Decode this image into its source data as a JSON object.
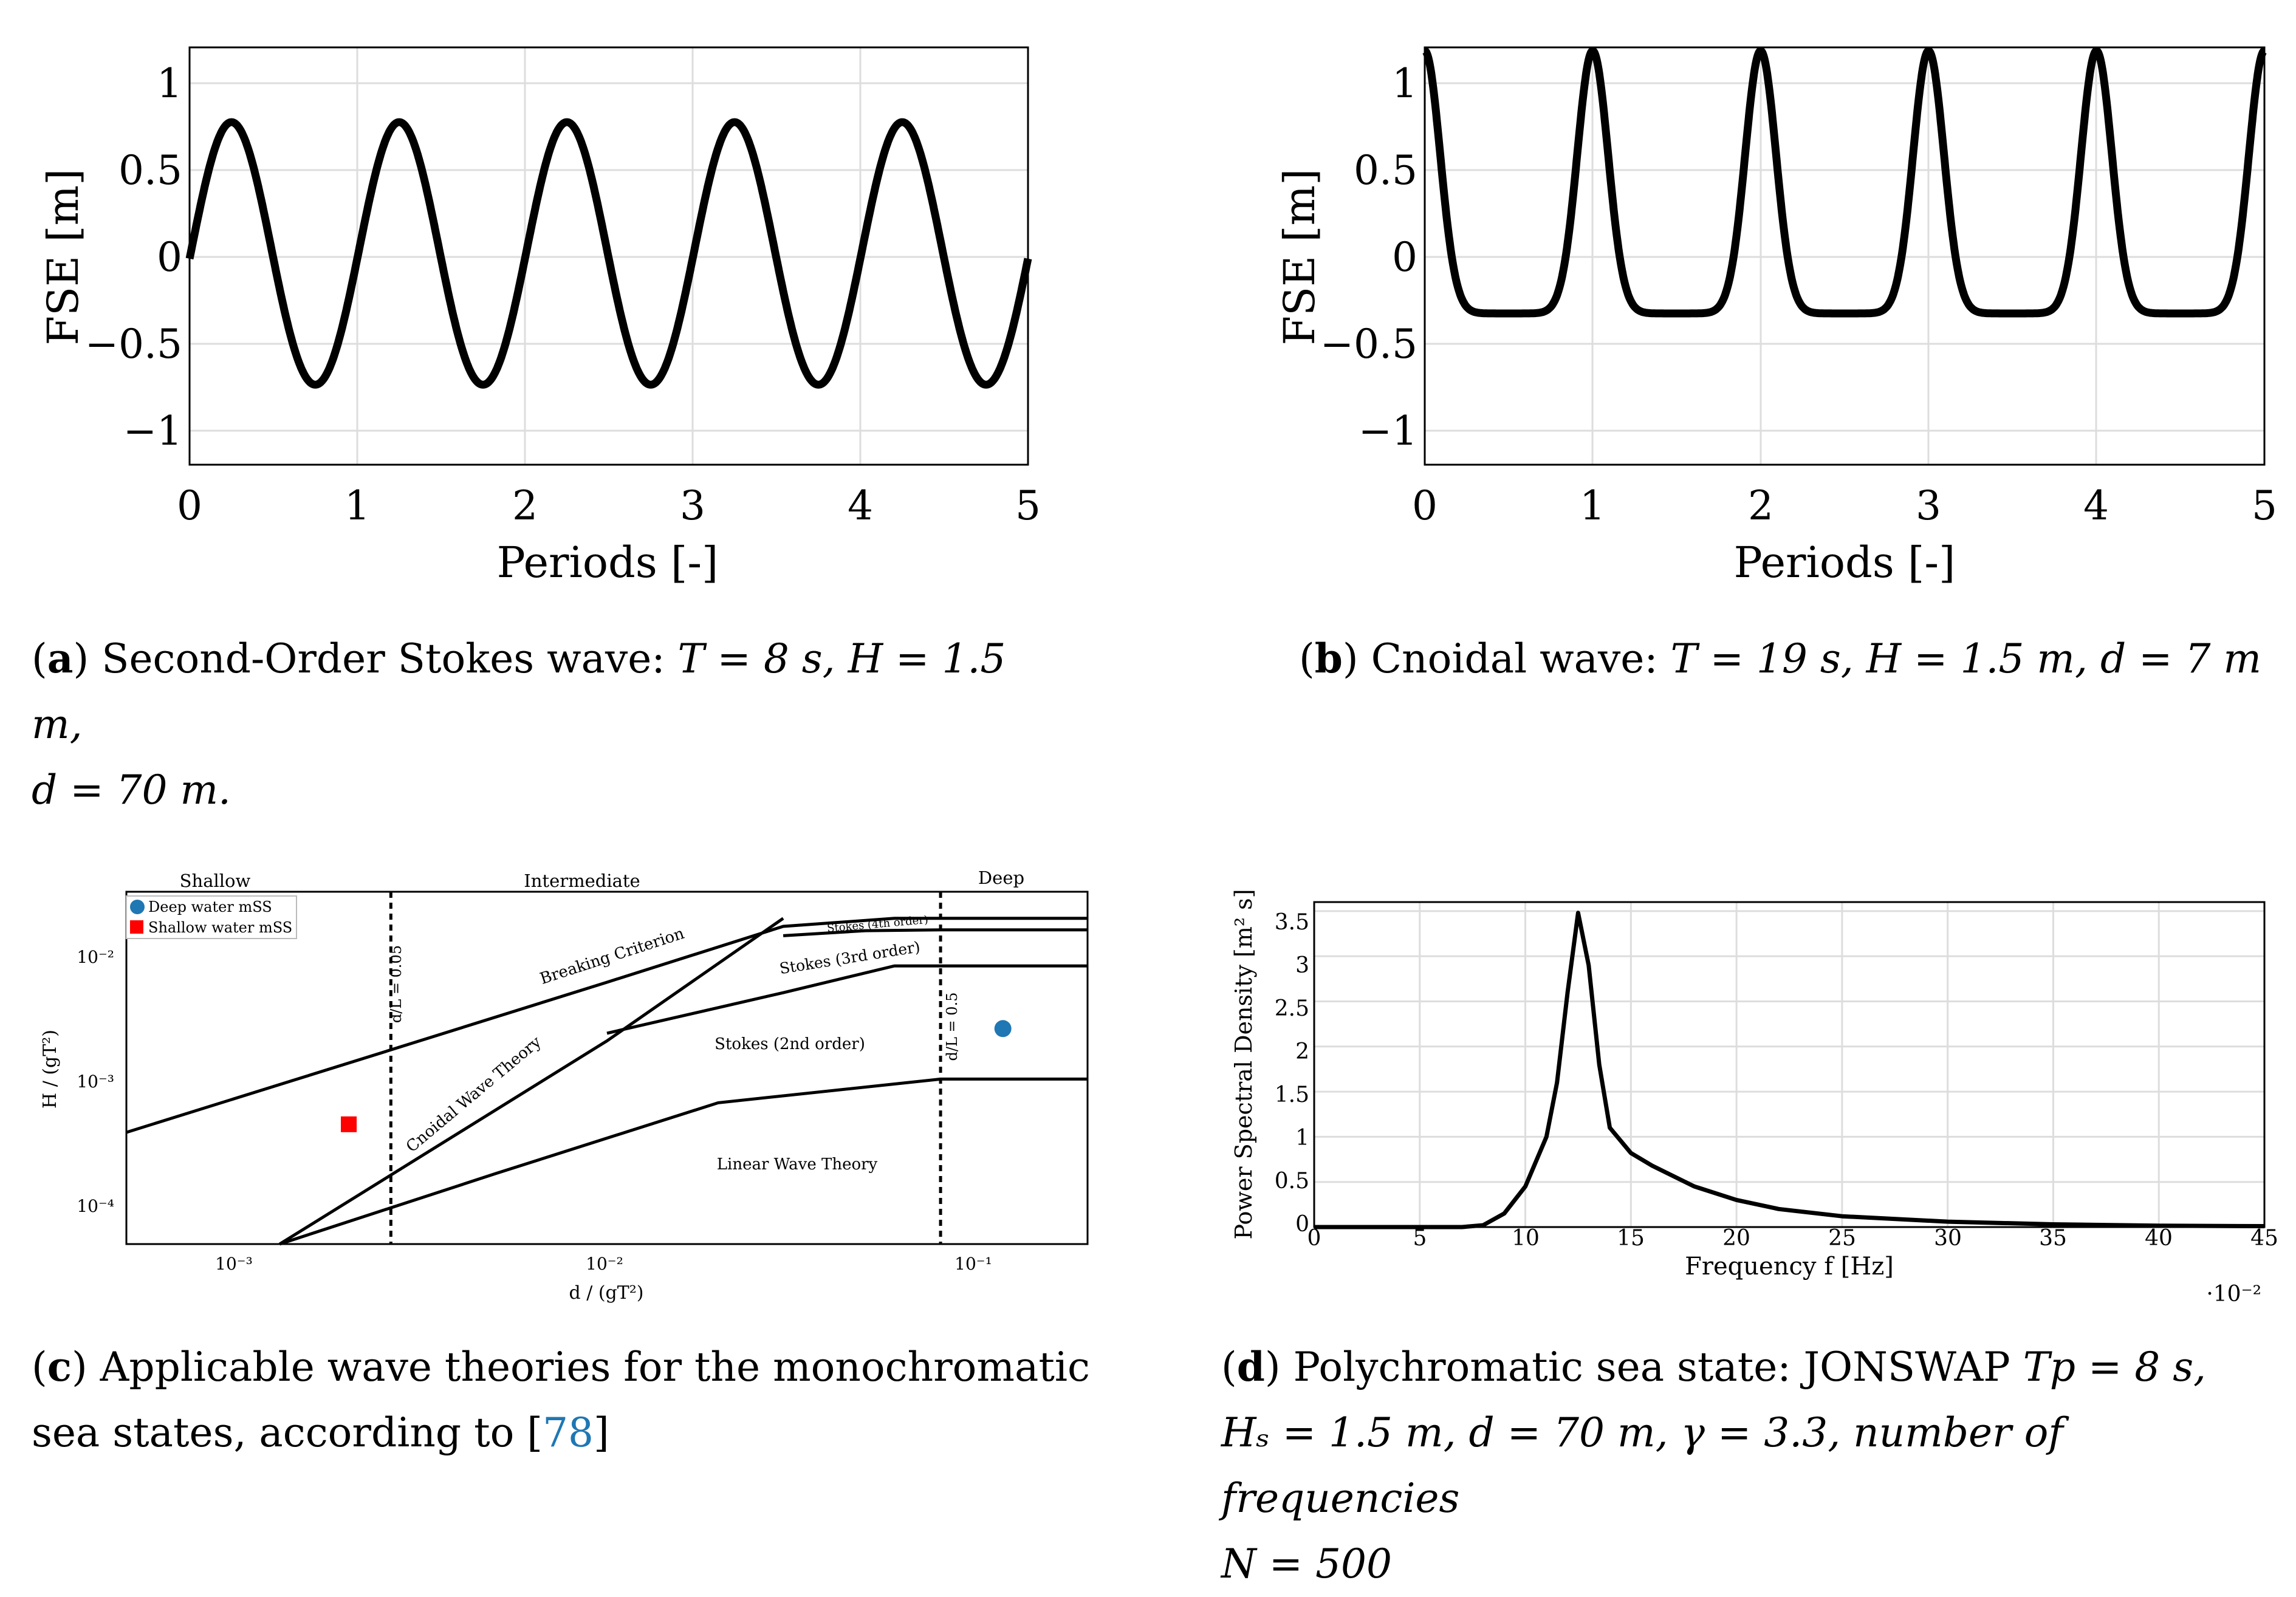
{
  "chart_data": [
    {
      "id": "a",
      "type": "line",
      "title": "",
      "xlabel": "Periods [-]",
      "ylabel": "FSE [m]",
      "xlim": [
        0,
        5
      ],
      "ylim": [
        -1.2,
        1.2
      ],
      "xticks": [
        "0",
        "1",
        "2",
        "3",
        "4",
        "5"
      ],
      "yticks": [
        "1",
        "0.5",
        "0",
        "−0.5",
        "−1"
      ],
      "series": [
        {
          "name": "Second-Order Stokes",
          "x_range": [
            0,
            5
          ],
          "description_values": {
            "crest": 0.77,
            "trough": -0.74
          }
        }
      ],
      "grid": true
    },
    {
      "id": "b",
      "type": "line",
      "title": "",
      "xlabel": "Periods [-]",
      "ylabel": "FSE [m]",
      "xlim": [
        0,
        5
      ],
      "ylim": [
        -1.2,
        1.2
      ],
      "xticks": [
        "0",
        "1",
        "2",
        "3",
        "4",
        "5"
      ],
      "yticks": [
        "1",
        "0.5",
        "0",
        "−0.5",
        "−1"
      ],
      "series": [
        {
          "name": "Cnoidal",
          "x_range": [
            0,
            5
          ],
          "description_values": {
            "crest": 1.18,
            "trough": -0.33
          }
        }
      ],
      "grid": true
    },
    {
      "id": "c",
      "type": "line",
      "title": "",
      "xlabel": "d / (gT²)",
      "ylabel": "H / (gT²)",
      "xscale": "log",
      "yscale": "log",
      "xlim": [
        0.0005,
        0.2
      ],
      "ylim": [
        5e-05,
        0.03
      ],
      "xticks": [
        "10⁻³",
        "10⁻²",
        "10⁻¹"
      ],
      "yticks": [
        "10⁻²",
        "10⁻³",
        "10⁻⁴"
      ],
      "regions": [
        "Shallow",
        "Intermediate",
        "Deep"
      ],
      "vlines": [
        {
          "x": 0.0026,
          "label": "d/L = 0.05"
        },
        {
          "x": 0.08,
          "label": "d/L = 0.5"
        }
      ],
      "curves": [
        {
          "name": "Breaking Criterion",
          "x": [
            0.0005,
            0.0026,
            0.01,
            0.03,
            0.06,
            0.2
          ],
          "y": [
            0.00038,
            0.0017,
            0.0058,
            0.016,
            0.0185,
            0.0185
          ]
        },
        {
          "name": "Stokes (4th order) boundary",
          "x": [
            0.03,
            0.05,
            0.08,
            0.2
          ],
          "y": [
            0.0135,
            0.0148,
            0.015,
            0.015
          ]
        },
        {
          "name": "Stokes (3rd order) boundary",
          "x": [
            0.01,
            0.03,
            0.06,
            0.2
          ],
          "y": [
            0.0023,
            0.0048,
            0.0078,
            0.0078
          ]
        },
        {
          "name": "Cnoidal Wave Theory boundary",
          "x": [
            0.0013,
            0.01,
            0.03
          ],
          "y": [
            5e-05,
            0.002,
            0.0185
          ]
        },
        {
          "name": "Linear Wave Theory boundary",
          "x": [
            0.0013,
            0.005,
            0.02,
            0.08,
            0.2
          ],
          "y": [
            5e-05,
            0.00018,
            0.00065,
            0.001,
            0.001
          ]
        }
      ],
      "region_labels": [
        "Breaking Criterion",
        "Stokes (4th order)",
        "Stokes (3rd order)",
        "Stokes (2nd order)",
        "Cnoidal Wave Theory",
        "Linear Wave Theory"
      ],
      "points": [
        {
          "name": "Deep water mSS",
          "x": 0.118,
          "y": 0.0025,
          "color": "#1f77b4",
          "marker": "circle"
        },
        {
          "name": "Shallow water mSS",
          "x": 0.002,
          "y": 0.00044,
          "color": "#ff0000",
          "marker": "square"
        }
      ],
      "legend": "top-left"
    },
    {
      "id": "d",
      "type": "line",
      "title": "",
      "xlabel": "Frequency f [Hz]",
      "ylabel": "Power Spectral Density [m² s]",
      "xlim": [
        0,
        45
      ],
      "ylim": [
        0,
        3.6
      ],
      "x_multiplier": "·10⁻²",
      "xticks": [
        "0",
        "5",
        "10",
        "15",
        "20",
        "25",
        "30",
        "35",
        "40",
        "45"
      ],
      "yticks": [
        "3.5",
        "3",
        "2.5",
        "2",
        "1.5",
        "1",
        "0.5",
        "0"
      ],
      "series": [
        {
          "name": "JONSWAP",
          "x": [
            0,
            7,
            8,
            9,
            10,
            11,
            11.5,
            12,
            12.5,
            13,
            13.5,
            14,
            15,
            16,
            18,
            20,
            22,
            25,
            30,
            35,
            40,
            45
          ],
          "y": [
            0,
            0,
            0.02,
            0.15,
            0.45,
            1.0,
            1.6,
            2.6,
            3.48,
            2.9,
            1.8,
            1.1,
            0.82,
            0.68,
            0.45,
            0.3,
            0.2,
            0.12,
            0.06,
            0.03,
            0.015,
            0.01
          ]
        }
      ],
      "grid": true
    }
  ],
  "captions": {
    "a_letter": "a",
    "a_line1": ") Second-Order Stokes wave: ",
    "a_line1_math": "T = 8 s, H = 1.5 m,",
    "a_line2": "d = 70 m.",
    "b_letter": "b",
    "b_text": ") Cnoidal wave: ",
    "b_math": "T = 19 s, H = 1.5 m, d = 7 m",
    "c_letter": "c",
    "c_line1": ") Applicable wave theories for the monochromatic",
    "c_line2": "sea states, according to [",
    "c_ref": "78",
    "c_line2_end": "]",
    "d_letter": "d",
    "d_line1": ") Polychromatic sea state: JONSWAP ",
    "d_line1_math": "Tp = 8 s,",
    "d_line2": "Hₛ = 1.5 m, d = 70 m, γ = 3.3, number of frequencies",
    "d_line3": "N = 500"
  }
}
